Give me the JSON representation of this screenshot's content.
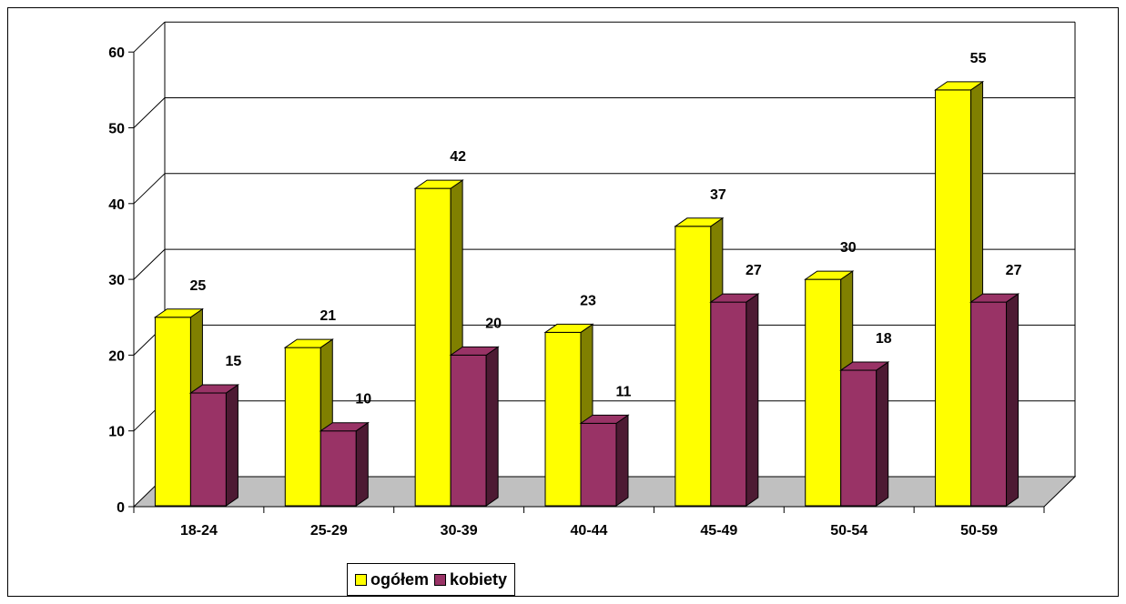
{
  "chart_data": {
    "type": "bar",
    "categories": [
      "18-24",
      "25-29",
      "30-39",
      "40-44",
      "45-49",
      "50-54",
      "50-59"
    ],
    "series": [
      {
        "name": "ogółem",
        "values": [
          25,
          21,
          42,
          23,
          37,
          30,
          55
        ],
        "color": "#FFFF00",
        "side_color": "#808000"
      },
      {
        "name": "kobiety",
        "values": [
          15,
          10,
          20,
          11,
          27,
          18,
          27
        ],
        "color": "#993366",
        "side_color": "#4D1A33"
      }
    ],
    "ylim": [
      0,
      60
    ],
    "yticks": [
      "0",
      "10",
      "20",
      "30",
      "40",
      "50",
      "60"
    ],
    "grid": true,
    "three_d": true,
    "floor_color": "#C0C0C0",
    "legend_position": "bottom"
  }
}
